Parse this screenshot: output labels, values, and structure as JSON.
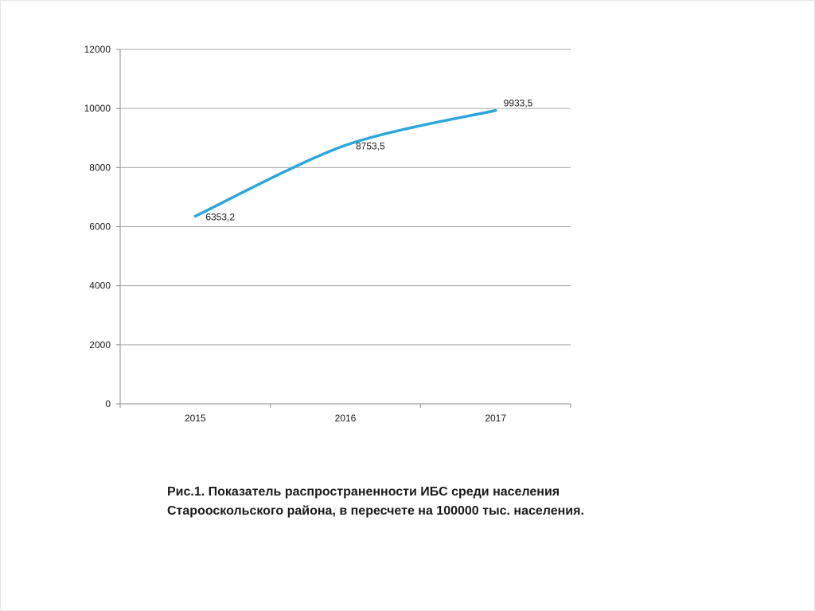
{
  "chart_data": {
    "type": "line",
    "categories": [
      "2015",
      "2016",
      "2017"
    ],
    "series": [
      {
        "values": [
          6353.2,
          8753.5,
          9933.5
        ],
        "data_labels": [
          "6353,2",
          "8753,5",
          "9933,5"
        ],
        "color": "#2aa7dc"
      }
    ],
    "y_ticks": [
      0,
      2000,
      4000,
      6000,
      8000,
      10000,
      12000
    ],
    "ylim": [
      0,
      12000
    ],
    "grid": true,
    "legend": "none",
    "title": "",
    "xlabel": "",
    "ylabel": ""
  },
  "caption": {
    "line1": "Рис.1.  Показатель распространенности ИБС среди населения",
    "line2": "Старооскольского района, в пересчете на 100000 тыс. населения."
  },
  "colors": {
    "line": "#2aa7dc",
    "grid": "#a6a6a6",
    "axis": "#8c8c8c",
    "text": "#1a1a1a"
  }
}
